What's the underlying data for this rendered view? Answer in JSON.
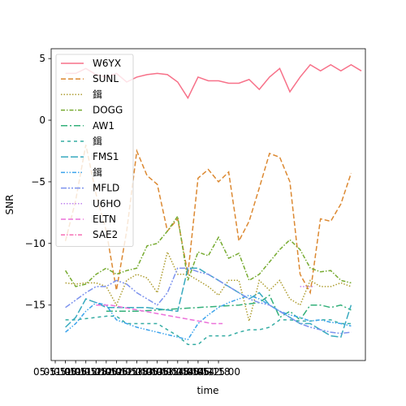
{
  "chart_data": {
    "type": "line",
    "xlabel": "time",
    "ylabel": "SNR",
    "xlim": [
      -0.2,
      15.2
    ],
    "ylim": [
      -19.5,
      5.8
    ],
    "x_tick_labels": [
      "05-11 00",
      "05-11 06",
      "05-11 12",
      "05-11 18",
      "05-12 00",
      "05-12 06",
      "05-12 12",
      "05-12 18",
      "05-13 00",
      "05-13 06",
      "05-13 12",
      "05-13 18",
      "05-14 00",
      "05-14 06",
      "05-14 12",
      "05-14 18",
      "05-15 00"
    ],
    "x_tick_values": [
      0,
      0.5,
      1,
      1.5,
      2,
      2.5,
      3,
      3.5,
      4,
      4.5,
      5,
      5.5,
      6,
      6.5,
      7,
      7.5,
      8
    ],
    "y_ticks": [
      5,
      0,
      -5,
      -10,
      -15
    ],
    "legend_position": "upper left",
    "series": [
      {
        "name": "W6YX",
        "color": "#f77189",
        "dash": "",
        "x": [
          0.5,
          1.0,
          1.5,
          2.0,
          2.5,
          3.0,
          3.5,
          4.0,
          4.5,
          5.0,
          5.5,
          6.0,
          6.5,
          7.0,
          7.5,
          8.0,
          8.5,
          9.0,
          9.5,
          10.0,
          10.5,
          11.0,
          11.5,
          12.0,
          12.5,
          13.0,
          13.5,
          14.0,
          14.5,
          15.0
        ],
        "y": [
          3.8,
          3.8,
          4.2,
          3.7,
          3.5,
          3.8,
          3.1,
          3.5,
          3.7,
          3.8,
          3.7,
          3.1,
          1.8,
          3.5,
          3.2,
          3.2,
          3.0,
          3.0,
          3.3,
          2.5,
          3.5,
          4.2,
          2.3,
          3.5,
          4.5,
          4.0,
          4.5,
          4.0,
          4.5,
          4.0
        ]
      },
      {
        "name": "SUNL",
        "color": "#dc8932",
        "dash": "6,3",
        "x": [
          0.5,
          1.0,
          1.5,
          2.0,
          2.5,
          3.0,
          3.5,
          4.0,
          4.5,
          5.0,
          5.5,
          6.0,
          6.5,
          7.0,
          7.5,
          8.0,
          8.5,
          9.0,
          9.5,
          10.0,
          10.5,
          11.0,
          11.5,
          12.0,
          12.5,
          13.0,
          13.5,
          14.0,
          14.5
        ],
        "y": [
          -9.8,
          -6.5,
          -2.0,
          -6.0,
          -9.0,
          -13.8,
          -9.0,
          -2.5,
          -4.5,
          -5.2,
          -9.0,
          -8.0,
          -12.5,
          -4.7,
          -4.0,
          -5.0,
          -4.2,
          -9.8,
          -8.2,
          -5.5,
          -2.7,
          -3.0,
          -5.0,
          -12.5,
          -14.0,
          -8.0,
          -8.2,
          -6.8,
          -4.3
        ]
      },
      {
        "name": "鍓",
        "color": "#ae9d31",
        "dash": "1.5,2",
        "x": [
          0.5,
          1.0,
          1.5,
          2.0,
          2.5,
          3.0,
          3.5,
          4.0,
          4.5,
          5.0,
          5.5,
          6.0,
          6.5,
          7.0,
          7.5,
          8.0,
          8.5,
          9.0,
          9.5,
          10.0,
          10.5,
          11.0,
          11.5,
          12.0,
          12.5,
          13.0,
          13.5,
          14.0,
          14.5
        ],
        "y": [
          -13.2,
          -13.3,
          -13.2,
          -13.2,
          -13.5,
          -15.0,
          -13.0,
          -12.5,
          -12.8,
          -14.0,
          -10.7,
          -12.5,
          -12.5,
          -13.0,
          -13.5,
          -14.2,
          -13.0,
          -13.0,
          -16.3,
          -13.0,
          -13.8,
          -13.0,
          -14.5,
          -15.0,
          -13.0,
          -13.5,
          -13.5,
          -13.2,
          -13.5
        ]
      },
      {
        "name": "DOGG",
        "color": "#77ab31",
        "dash": "5,2,1.5,2",
        "x": [
          0.5,
          1.0,
          1.5,
          2.0,
          2.5,
          3.0,
          3.5,
          4.0,
          4.5,
          5.0,
          5.5,
          6.0,
          6.5,
          7.0,
          7.5,
          8.0,
          8.5,
          9.0,
          9.5,
          10.0,
          10.5,
          11.0,
          11.5,
          12.0,
          12.5,
          13.0,
          13.5,
          14.0,
          14.5
        ],
        "y": [
          -12.2,
          -13.5,
          -13.3,
          -12.5,
          -12.0,
          -12.5,
          -12.2,
          -12.0,
          -10.2,
          -10.0,
          -9.0,
          -7.8,
          -13.0,
          -10.7,
          -11.0,
          -9.5,
          -11.2,
          -10.8,
          -13.0,
          -12.5,
          -11.5,
          -10.5,
          -9.7,
          -10.5,
          -12.0,
          -12.3,
          -12.2,
          -13.0,
          -13.2
        ]
      },
      {
        "name": "AW1",
        "color": "#33b07a",
        "dash": "8,3,2,3",
        "x": [
          2.5,
          3.0,
          4.0,
          5.0,
          6.0,
          7.0,
          8.0,
          9.0,
          10.0,
          10.5,
          11.0,
          11.5,
          12.0,
          12.5,
          13.0,
          13.5,
          14.0,
          14.5
        ],
        "y": [
          -15.5,
          -15.5,
          -15.5,
          -15.4,
          -15.3,
          -15.2,
          -15.1,
          -15.0,
          -14.8,
          -14.2,
          -16.0,
          -15.5,
          -16.2,
          -15.0,
          -15.0,
          -15.2,
          -15.0,
          -15.4
        ]
      },
      {
        "name": "鍓",
        "color": "#36ada4",
        "dash": "4,4",
        "x": [
          0.5,
          1.0,
          1.5,
          2.0,
          2.5,
          3.0,
          3.5,
          4.0,
          4.5,
          5.0,
          5.5,
          6.0,
          6.5,
          7.0,
          7.5,
          8.0,
          8.5,
          9.0,
          9.5,
          10.0,
          10.5,
          11.0,
          11.5,
          12.0,
          12.5,
          13.0,
          13.5,
          14.0,
          14.5
        ],
        "y": [
          -16.2,
          -16.2,
          -16.1,
          -16.0,
          -15.9,
          -15.9,
          -16.5,
          -16.5,
          -16.5,
          -16.5,
          -17.0,
          -17.5,
          -18.2,
          -18.2,
          -17.5,
          -17.5,
          -17.5,
          -17.2,
          -17.0,
          -17.0,
          -16.8,
          -16.2,
          -16.2,
          -16.3,
          -16.3,
          -16.2,
          -16.2,
          -16.5,
          -16.5
        ]
      },
      {
        "name": "FMS1",
        "color": "#38aabf",
        "dash": "9,3",
        "x": [
          0.5,
          1.0,
          1.5,
          2.0,
          2.5,
          3.0,
          3.5,
          4.0,
          4.5,
          5.0,
          5.5,
          6.0,
          6.5,
          7.0,
          7.5,
          8.0,
          8.5,
          9.0,
          9.5,
          10.0,
          10.5,
          11.0,
          11.5,
          12.0,
          12.5,
          13.0,
          13.5,
          14.0,
          14.5
        ],
        "y": [
          -16.8,
          -16.0,
          -14.5,
          -14.8,
          -15.2,
          -15.2,
          -15.2,
          -15.2,
          -15.2,
          -15.3,
          -15.4,
          -15.5,
          -12.0,
          -12.0,
          -12.5,
          -13.0,
          -13.5,
          -14.0,
          -14.5,
          -14.0,
          -15.0,
          -15.5,
          -16.0,
          -16.5,
          -16.5,
          -17.0,
          -17.5,
          -17.6,
          -15.0
        ]
      },
      {
        "name": "鍓",
        "color": "#3ba3ec",
        "dash": "5,2,1.5,2,1.5,2",
        "x": [
          0.5,
          1.0,
          1.5,
          2.0,
          2.5,
          3.0,
          3.5,
          4.0,
          4.5,
          5.0,
          5.5,
          6.0,
          6.5,
          7.0,
          7.5,
          8.0,
          8.5,
          9.0,
          9.5,
          10.0,
          10.5,
          11.0,
          11.5,
          12.0,
          12.5,
          13.0,
          13.5,
          14.0,
          14.5
        ],
        "y": [
          -17.2,
          -16.5,
          -15.5,
          -14.8,
          -15.0,
          -16.2,
          -16.5,
          -16.8,
          -17.0,
          -17.2,
          -17.4,
          -17.6,
          -17.8,
          -16.5,
          -15.8,
          -15.2,
          -14.8,
          -14.5,
          -14.2,
          -14.5,
          -15.0,
          -15.5,
          -15.8,
          -16.0,
          -16.3,
          -16.2,
          -16.4,
          -16.5,
          -16.7
        ]
      },
      {
        "name": "MFLD",
        "color": "#7d93ee",
        "dash": "7,2,2,2,2,2",
        "x": [
          0.5,
          1.0,
          1.5,
          2.0,
          2.5,
          3.0,
          3.5,
          4.0,
          4.5,
          5.0,
          5.5,
          6.0,
          6.5,
          7.0,
          7.5,
          8.0,
          8.5,
          9.0,
          9.5,
          10.0,
          10.5,
          11.0,
          11.5,
          12.0,
          12.5,
          13.0,
          13.5,
          14.0,
          14.5
        ],
        "y": [
          -15.2,
          -14.6,
          -14.0,
          -13.5,
          -13.5,
          -13.0,
          -13.3,
          -14.0,
          -14.5,
          -15.0,
          -14.0,
          -12.0,
          -12.0,
          -12.3,
          -12.5,
          -13.0,
          -13.5,
          -14.0,
          -14.5,
          -14.8,
          -15.0,
          -15.5,
          -16.0,
          -16.5,
          -16.8,
          -17.0,
          -17.2,
          -17.3,
          -17.2
        ]
      },
      {
        "name": "U6HO",
        "color": "#c285ef",
        "dash": "1.5,2",
        "x": [
          12.0,
          12.7
        ],
        "y": [
          -13.5,
          -13.5
        ]
      },
      {
        "name": "ELTN",
        "color": "#ec72da",
        "dash": "6,3",
        "x": [
          2.0,
          2.7,
          7.7,
          8.2
        ],
        "y": [
          -15.0,
          -15.0,
          -16.5,
          -16.5
        ]
      },
      {
        "name": "SAE2",
        "color": "#f66fb4",
        "dash": "5,2,1.5,2",
        "x": [],
        "y": []
      }
    ]
  }
}
